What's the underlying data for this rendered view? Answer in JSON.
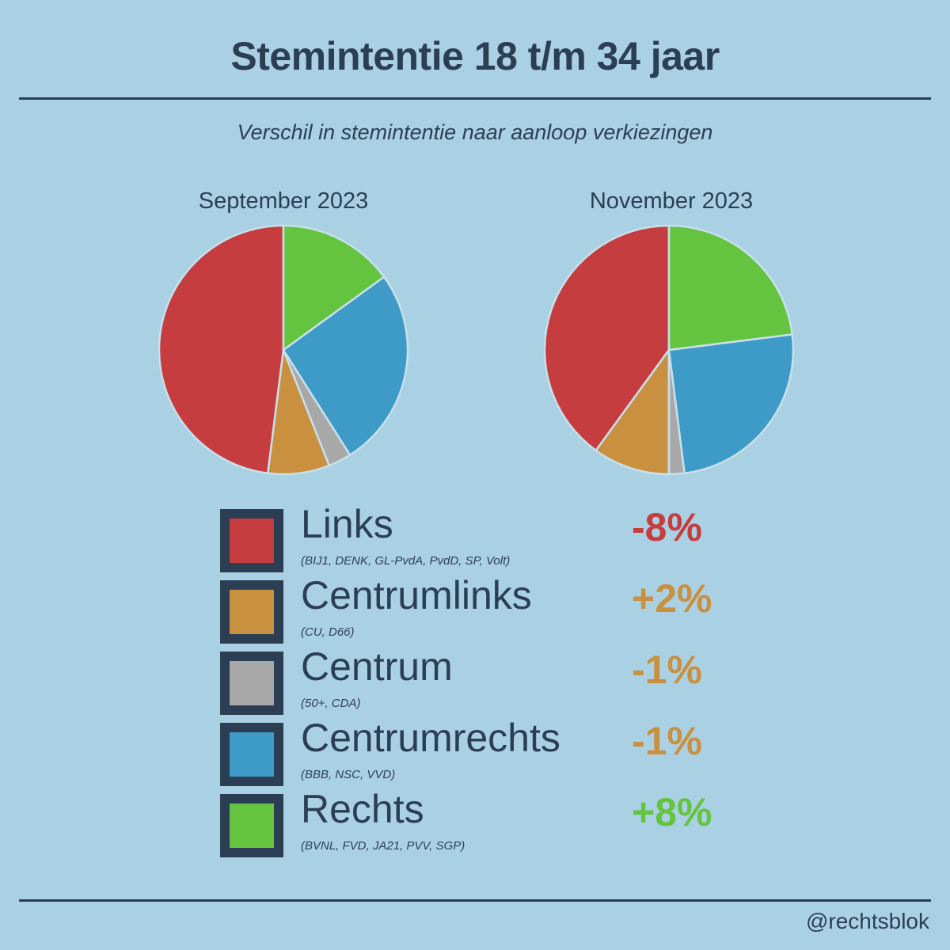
{
  "header": {
    "title": "Stemintentie 18 t/m 34 jaar",
    "subtitle": "Verschil in stemintentie naar aanloop verkiezingen"
  },
  "chart_data": {
    "type": "pie",
    "categories": [
      "Links",
      "Centrumlinks",
      "Centrum",
      "Centrumrechts",
      "Rechts"
    ],
    "colors": [
      "#c63d40",
      "#c99040",
      "#a8a8a8",
      "#3e9ac6",
      "#64c440"
    ],
    "pies": [
      {
        "label": "September 2023",
        "values": [
          48,
          8,
          3,
          26,
          15
        ]
      },
      {
        "label": "November 2023",
        "values": [
          40,
          10,
          2,
          25,
          23
        ]
      }
    ],
    "legend_placement": "bottom"
  },
  "legend": [
    {
      "name": "Links",
      "parties": "(BIJ1, DENK, GL-PvdA, PvdD, SP, Volt)",
      "change": "-8%",
      "swatch": "#c63d40",
      "change_color": "#c63d40"
    },
    {
      "name": "Centrumlinks",
      "parties": "(CU, D66)",
      "change": "+2%",
      "swatch": "#c99040",
      "change_color": "#c99040"
    },
    {
      "name": "Centrum",
      "parties": "(50+, CDA)",
      "change": "-1%",
      "swatch": "#a8a8a8",
      "change_color": "#c99040"
    },
    {
      "name": "Centrumrechts",
      "parties": "(BBB, NSC, VVD)",
      "change": "-1%",
      "swatch": "#3e9ac6",
      "change_color": "#c99040"
    },
    {
      "name": "Rechts",
      "parties": "(BVNL, FVD, JA21, PVV, SGP)",
      "change": "+8%",
      "swatch": "#64c440",
      "change_color": "#64c440"
    }
  ],
  "footer": {
    "handle": "@rechtsblok"
  }
}
